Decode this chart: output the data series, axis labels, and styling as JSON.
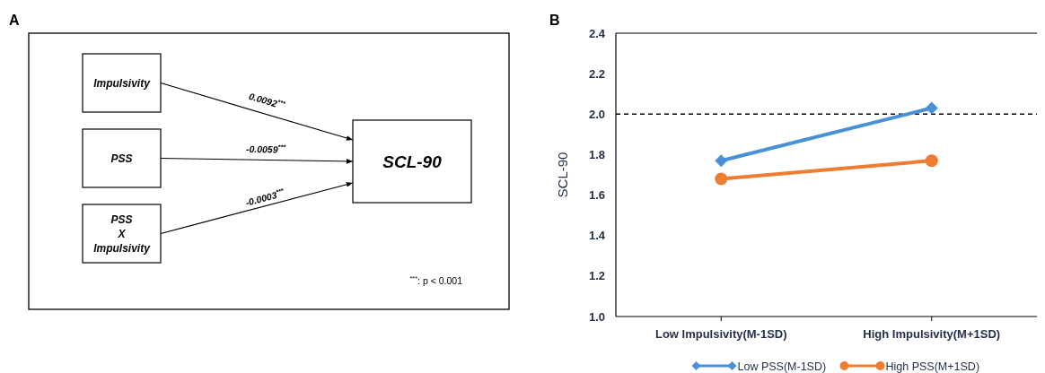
{
  "chart_data": [
    {
      "type": "other",
      "categories": [
        "Impulsivity",
        "PSS",
        "PSS\nX\nImpulsivity",
        "SCL-90"
      ],
      "value_labels": [
        "0.0092$^{***}$",
        "-0.0059$^{***}$",
        "-0.0003$^{***}$",
        null
      ],
      "annotations": [
        "A",
        "$^{***}$: p < 0.001"
      ]
    },
    {
      "type": "line",
      "categories": [
        "Low Impulsivity(M-1SD)",
        "High Impulsivity(M+1SD)"
      ],
      "ylabel": "SCL-90",
      "ylim": [
        1.0,
        2.4
      ],
      "yticks": [
        {
          "value": 1.0,
          "label": "1.0"
        },
        1.2,
        1.4,
        1.6,
        1.8,
        {
          "value": 2.0,
          "label": "2.0"
        },
        2.2,
        2.4
      ],
      "grid": false,
      "legend": "bottom",
      "annotations": [
        "B"
      ],
      "ref_lines": [
        {
          "axis": "y",
          "value": 2.0,
          "color": "#000000",
          "line_style": "dashed"
        }
      ],
      "series": [
        {
          "name": "Low PSS(M-1SD)",
          "color": "#4a90d9",
          "marker": "diamond",
          "values": [
            1.77,
            2.03
          ]
        },
        {
          "name": "High PSS(M+1SD)",
          "color": "#ed7d31",
          "marker": "circle",
          "values": [
            1.68,
            1.77
          ]
        }
      ]
    }
  ]
}
